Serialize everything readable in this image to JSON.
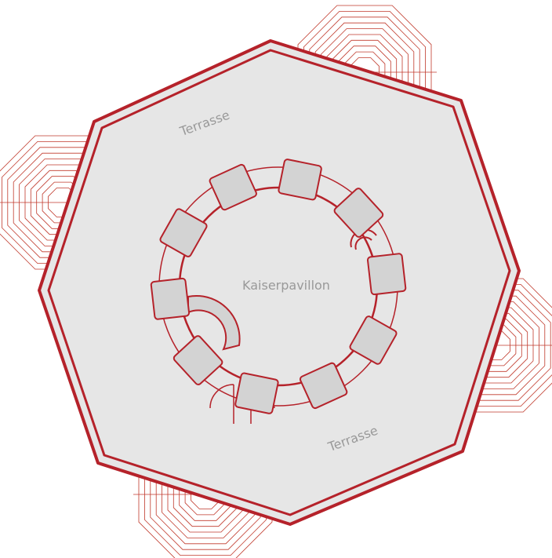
{
  "labels": {
    "terrace_top": "Terrasse",
    "pavilion": "Kaiserpavillon",
    "terrace_bottom": "Terrasse"
  }
}
